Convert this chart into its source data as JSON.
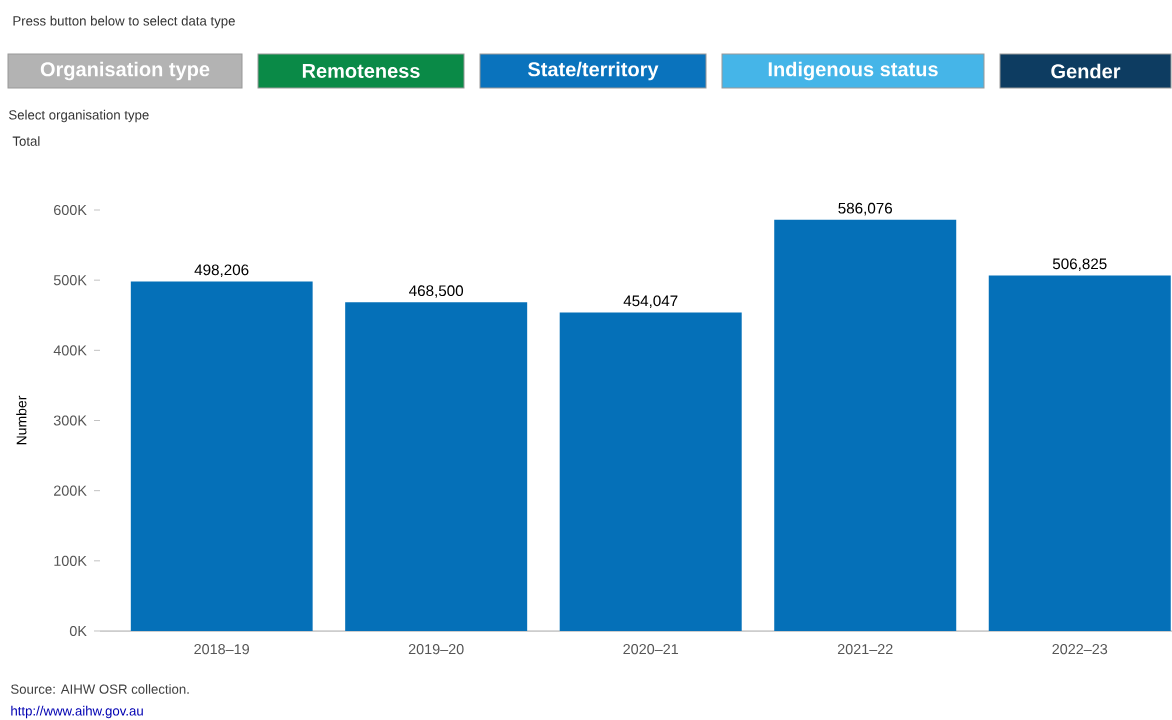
{
  "chart_data": {
    "type": "bar",
    "categories": [
      "2018–19",
      "2019–20",
      "2020–21",
      "2021–22",
      "2022–23"
    ],
    "values": [
      498206,
      468500,
      454047,
      586076,
      506825
    ],
    "value_labels": [
      "498,206",
      "468,500",
      "454,047",
      "586,076",
      "506,825"
    ],
    "color": "#0570b8",
    "ylabel": "Number",
    "ylim": [
      0,
      600000
    ],
    "yticks": [
      {
        "value": 0,
        "label": "0K"
      },
      {
        "value": 100000,
        "label": "100K"
      },
      {
        "value": 200000,
        "label": "200K"
      },
      {
        "value": 300000,
        "label": "300K"
      },
      {
        "value": 400000,
        "label": "400K"
      },
      {
        "value": 500000,
        "label": "500K"
      },
      {
        "value": 600000,
        "label": "600K"
      }
    ],
    "annotations": [
      "Press button below to select data type",
      "Organisation type",
      "Remoteness",
      "State/territory",
      "Indigenous status",
      "Gender",
      "Select organisation type",
      "Total",
      "Source: AIHW OSR collection.",
      "http://www.aihw.gov.au"
    ]
  }
}
